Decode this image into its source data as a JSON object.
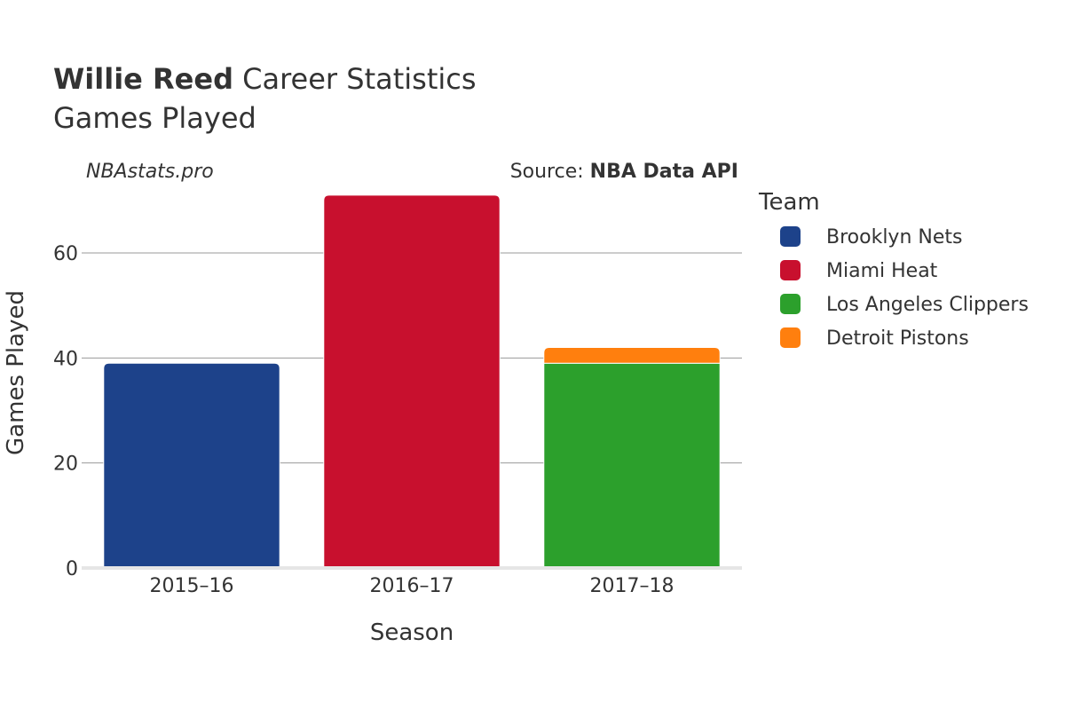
{
  "header": {
    "title_bold": "Willie Reed",
    "title_rest": " Career Statistics",
    "subtitle": "Games Played",
    "credit": "NBAstats.pro",
    "source_prefix": "Source: ",
    "source_name": "NBA Data API"
  },
  "chart_data": {
    "type": "bar",
    "stacked": true,
    "categories": [
      "2015–16",
      "2016–17",
      "2017–18"
    ],
    "xlabel": "Season",
    "ylabel": "Games Played",
    "ylim": [
      0,
      72
    ],
    "yticks": [
      0,
      20,
      40,
      60
    ],
    "grid": true,
    "legend_title": "Team",
    "legend_position": "right",
    "series": [
      {
        "name": "Brooklyn Nets",
        "color": "#1d428a",
        "values": [
          39,
          0,
          0
        ]
      },
      {
        "name": "Miami Heat",
        "color": "#c8102e",
        "values": [
          0,
          71,
          0
        ]
      },
      {
        "name": "Los Angeles Clippers",
        "color": "#2ca02c",
        "values": [
          0,
          0,
          39
        ]
      },
      {
        "name": "Detroit Pistons",
        "color": "#ff7f0e",
        "values": [
          0,
          0,
          3
        ]
      }
    ]
  }
}
